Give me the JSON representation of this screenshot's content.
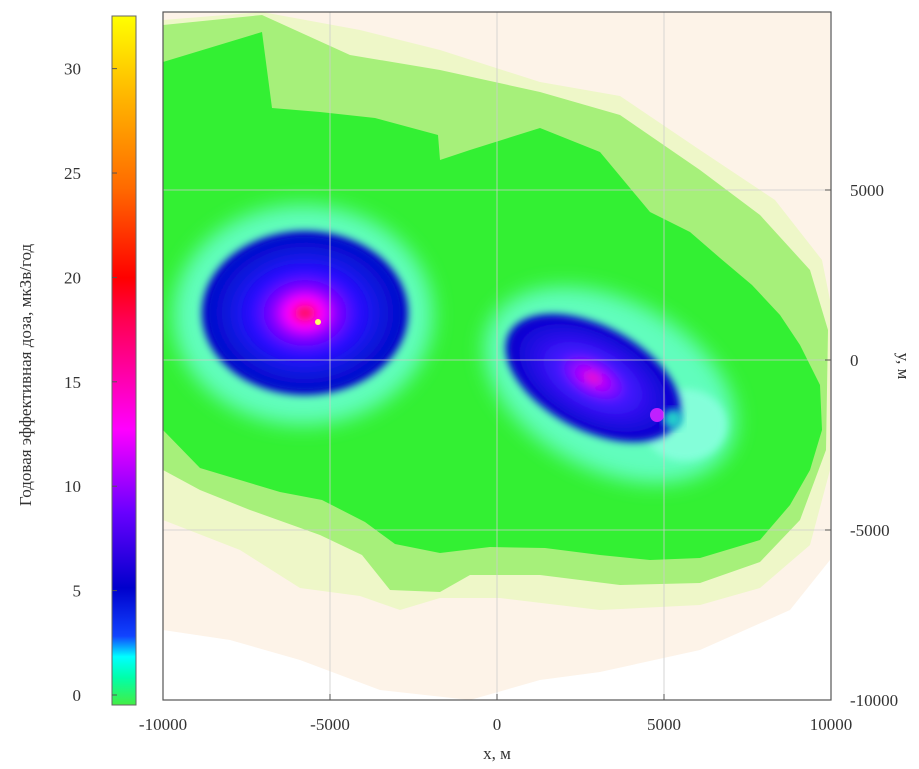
{
  "chart_data": {
    "type": "heatmap",
    "title": "",
    "xlabel": "x, м",
    "ylabel": "y, м",
    "xlim": [
      -10000,
      10000
    ],
    "ylim": [
      -10000,
      10000
    ],
    "xticks": [
      "-10000",
      "-5000",
      "0",
      "5000",
      "10000"
    ],
    "yticks": [
      "5000",
      "0",
      "-5000",
      "-10000"
    ],
    "grid": "on",
    "colorbar": {
      "label": "Годовая эффективная доза, мкЗв/год",
      "range": [
        0,
        33
      ],
      "ticks": [
        "0",
        "5",
        "10",
        "15",
        "20",
        "25",
        "30"
      ],
      "colors": [
        "#33ee33",
        "#00ffff",
        "#0000cc",
        "#8800ff",
        "#ff00ff",
        "#ff0000",
        "#ffb000",
        "#ffff00"
      ]
    },
    "background_color": "#fdf4ea",
    "sources": [
      {
        "x": -5500,
        "y": 1600,
        "peak_dose": 20
      },
      {
        "x": 2400,
        "y": -300,
        "peak_dose": 12
      },
      {
        "x": 4800,
        "y": -1800,
        "peak_dose": 10
      }
    ]
  }
}
